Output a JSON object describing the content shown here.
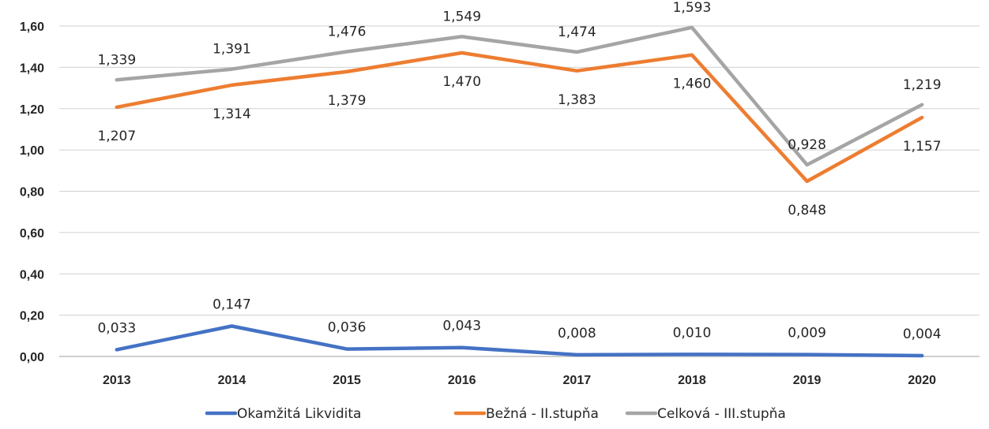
{
  "chart_data": {
    "type": "line",
    "title": "",
    "xlabel": "",
    "ylabel": "",
    "ylim": [
      0,
      1.6
    ],
    "ytick_step": 0.2,
    "yticks": [
      "0,00",
      "0,20",
      "0,40",
      "0,60",
      "0,80",
      "1,00",
      "1,20",
      "1,40",
      "1,60"
    ],
    "categories": [
      "2013",
      "2014",
      "2015",
      "2016",
      "2017",
      "2018",
      "2019",
      "2020"
    ],
    "grid": true,
    "legend_position": "bottom",
    "series": [
      {
        "name": "Okamžitá Likvidita",
        "color": "#4472c4",
        "values": [
          0.033,
          0.147,
          0.036,
          0.043,
          0.008,
          0.01,
          0.009,
          0.004
        ],
        "labels": [
          "0,033",
          "0,147",
          "0,036",
          "0,043",
          "0,008",
          "0,010",
          "0,009",
          "0,004"
        ]
      },
      {
        "name": "Bežná - II.stupňa",
        "color": "#ed7d31",
        "values": [
          1.207,
          1.314,
          1.379,
          1.47,
          1.383,
          1.46,
          0.848,
          1.157
        ],
        "labels": [
          "1,207",
          "1,314",
          "1,379",
          "1,470",
          "1,383",
          "1,460",
          "0,848",
          "1,157"
        ]
      },
      {
        "name": "Celková - III.stupňa",
        "color": "#a5a5a5",
        "values": [
          1.339,
          1.391,
          1.476,
          1.549,
          1.474,
          1.593,
          0.928,
          1.219
        ],
        "labels": [
          "1,339",
          "1,391",
          "1,476",
          "1,549",
          "1,474",
          "1,593",
          "0,928",
          "1,219"
        ]
      }
    ]
  }
}
